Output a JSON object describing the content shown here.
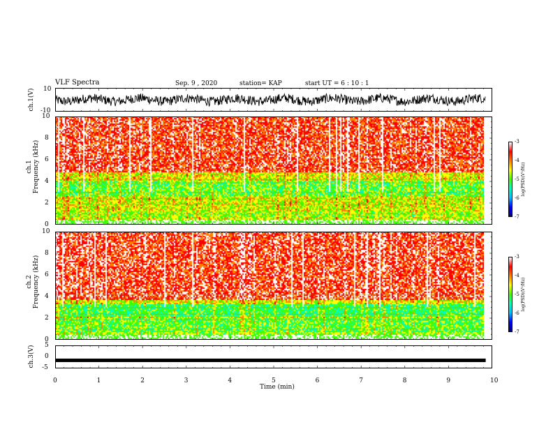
{
  "header": {
    "title": "VLF Spectra",
    "date": "Sep. 9 , 2020",
    "station": "station= KAP",
    "start": "start UT =  6 : 10 : 1"
  },
  "chart_data": [
    {
      "type": "line",
      "name": "ch1-waveform",
      "ylabel": "ch.1(V)",
      "ylim": [
        -10,
        10
      ],
      "yticks": [
        "10",
        "-10"
      ],
      "xlim": [
        0,
        10
      ]
    },
    {
      "type": "heatmap",
      "name": "ch1-spectrogram",
      "ylabel": "ch.1\nFrequency (kHz)",
      "ylabel_line1": "ch.1",
      "ylabel_line2": "Frequency  (kHz)",
      "ylim": [
        0,
        10
      ],
      "yticks": [
        "0",
        "2",
        "4",
        "6",
        "8",
        "10"
      ],
      "xlim": [
        0,
        9.85
      ],
      "colorbar": {
        "label": "log(PSD)(V²/Hz)",
        "range": [
          -7,
          -3
        ],
        "ticks": [
          "-3",
          "-4",
          "-5",
          "-6",
          "-7"
        ]
      }
    },
    {
      "type": "heatmap",
      "name": "ch2-spectrogram",
      "ylabel_line1": "ch.2",
      "ylabel_line2": "Frequency  (kHz)",
      "ylim": [
        0,
        10
      ],
      "yticks": [
        "0",
        "2",
        "4",
        "6",
        "8",
        "10"
      ],
      "xlim": [
        0,
        9.85
      ],
      "colorbar": {
        "label": "log(PSD)(V²/Hz)",
        "range": [
          -7,
          -3
        ],
        "ticks": [
          "-3",
          "-4",
          "-5",
          "-6",
          "-7"
        ]
      }
    },
    {
      "type": "line",
      "name": "ch3-waveform",
      "ylabel": "ch.3(V)",
      "ylim": [
        -5,
        5
      ],
      "yticks": [
        "5",
        "0",
        "-5"
      ],
      "value": -1.5,
      "xlim": [
        0,
        9.85
      ]
    }
  ],
  "x_axis": {
    "label": "Time  (min)",
    "ticks": [
      "0",
      "1",
      "2",
      "3",
      "4",
      "5",
      "6",
      "7",
      "8",
      "9",
      "10"
    ],
    "range": [
      0,
      10
    ]
  },
  "colors": {
    "spectrum": [
      "#000080",
      "#0000ff",
      "#00bfff",
      "#00ffbf",
      "#40ff00",
      "#ffff00",
      "#ff8000",
      "#ff0000",
      "#ffffff"
    ]
  }
}
